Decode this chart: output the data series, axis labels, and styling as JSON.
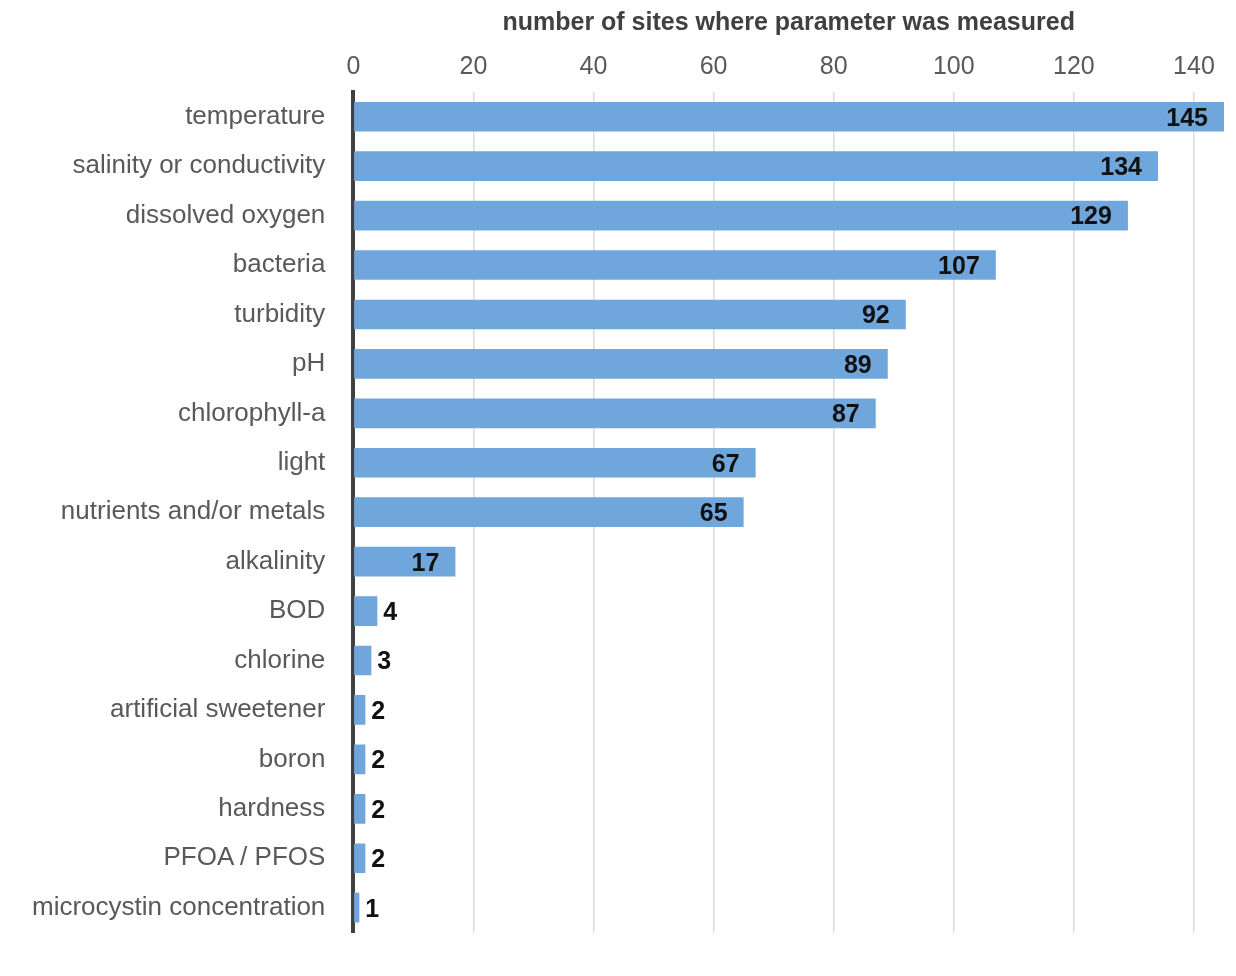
{
  "chart_data": {
    "type": "bar",
    "orientation": "horizontal",
    "xlabel": "number of sites where parameter was measured",
    "categories": [
      "temperature",
      "salinity or conductivity",
      "dissolved oxygen",
      "bacteria",
      "turbidity",
      "pH",
      "chlorophyll-a",
      "light",
      "nutrients and/or metals",
      "alkalinity",
      "BOD",
      "chlorine",
      "artificial sweetener",
      "boron",
      "hardness",
      "PFOA / PFOS",
      "microcystin concentration"
    ],
    "values": [
      145,
      134,
      129,
      107,
      92,
      89,
      87,
      67,
      65,
      17,
      4,
      3,
      2,
      2,
      2,
      2,
      1
    ],
    "color": "#6fa6dc",
    "xlim": [
      0,
      145
    ],
    "xticks": [
      0,
      20,
      40,
      60,
      80,
      100,
      120,
      140
    ],
    "grid": "x",
    "data_labels": true,
    "legend": false
  }
}
